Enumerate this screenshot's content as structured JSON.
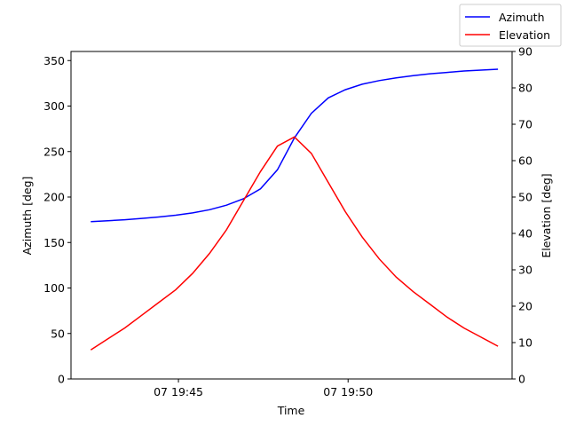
{
  "chart_data": {
    "type": "line",
    "xlabel": "Time",
    "ylabel_left": "Azimuth [deg]",
    "ylabel_right": "Elevation [deg]",
    "x_ticks": [
      "07 19:45",
      "07 19:50"
    ],
    "x": [
      "19:42:25",
      "19:42:55",
      "19:43:25",
      "19:43:55",
      "19:44:25",
      "19:44:55",
      "19:45:25",
      "19:45:55",
      "19:46:25",
      "19:46:55",
      "19:47:25",
      "19:47:55",
      "19:48:25",
      "19:48:55",
      "19:49:25",
      "19:49:55",
      "19:50:25",
      "19:50:55",
      "19:51:25",
      "19:51:55",
      "19:52:25",
      "19:52:55",
      "19:53:25",
      "19:53:55",
      "19:54:25"
    ],
    "xlim": [
      "19:41:50",
      "19:54:50"
    ],
    "left_axis": {
      "ylim": [
        0,
        360
      ],
      "ticks": [
        "0",
        "50",
        "100",
        "150",
        "200",
        "250",
        "300",
        "350"
      ]
    },
    "right_axis": {
      "ylim": [
        0,
        90
      ],
      "ticks": [
        "0",
        "10",
        "20",
        "30",
        "40",
        "50",
        "60",
        "70",
        "80",
        "90"
      ]
    },
    "legend_position": "top-right",
    "series": [
      {
        "name": "Azimuth",
        "axis": "left",
        "color": "#0000ff",
        "values": [
          173,
          174,
          175,
          176.5,
          178,
          180,
          182.5,
          186,
          191,
          198,
          209,
          230,
          265,
          292,
          309,
          318,
          324,
          328,
          331,
          333.5,
          335.5,
          337,
          338.5,
          339.5,
          340.5
        ]
      },
      {
        "name": "Elevation",
        "axis": "right",
        "color": "#ff0000",
        "values": [
          8,
          11,
          14,
          17.5,
          21,
          24.5,
          29,
          34.5,
          41,
          49,
          57,
          64,
          66.5,
          62,
          54,
          46,
          39,
          33,
          28,
          24,
          20.5,
          17,
          14,
          11.5,
          9
        ]
      }
    ]
  }
}
